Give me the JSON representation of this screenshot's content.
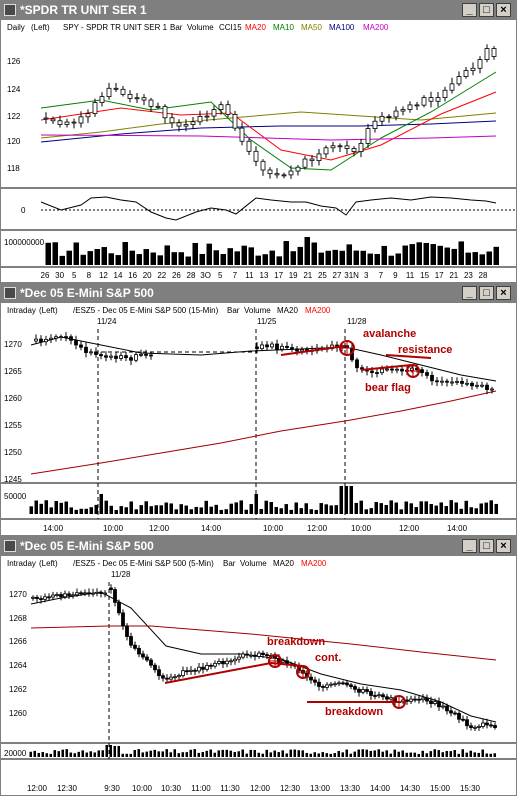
{
  "windows": [
    {
      "title": "*SPDR TR UNIT SER 1",
      "info": {
        "period": "Daily",
        "axis": "(Left)",
        "symbol": "SPY - SPDR TR UNIT SER 1",
        "bar": "Bar",
        "volume": "Volume",
        "cci": "CCI15",
        "ma1": "MA20",
        "ma2": "MA10",
        "ma3": "MA50",
        "ma4": "MA100",
        "ma5": "MA200"
      },
      "price_ticks": [
        "126",
        "124",
        "122",
        "120",
        "118"
      ],
      "cci_ticks": [
        "0"
      ],
      "volume_ticks": [
        "100000000"
      ],
      "date_labels": [
        "26",
        "30",
        "5",
        "8",
        "12",
        "14",
        "16",
        "20",
        "22",
        "26",
        "28",
        "3O",
        "5",
        "7",
        "11",
        "13",
        "17",
        "19",
        "21",
        "25",
        "27",
        "31N",
        "3",
        "7",
        "9",
        "11",
        "15",
        "17",
        "21",
        "23",
        "28"
      ]
    },
    {
      "title": "*Dec 05  E-Mini S&P 500",
      "info": {
        "period": "Intraday",
        "axis": "(Left)",
        "symbol": "/ESZ5 - Dec 05 E-Mini S&P 500 (15-Min)",
        "bar": "Bar",
        "volume": "Volume",
        "ma1": "MA20",
        "ma2": "MA200"
      },
      "price_ticks": [
        "1270",
        "1265",
        "1260",
        "1255",
        "1250",
        "1245"
      ],
      "volume_ticks": [
        "50000"
      ],
      "session_labels": [
        "11/24",
        "11/25",
        "11/28"
      ],
      "annotations": [
        "avalanche",
        "resistance",
        "bear flag"
      ],
      "time_labels": [
        "14:00",
        "10:00",
        "12:00",
        "14:00",
        "10:00",
        "12:00",
        "10:00",
        "12:00",
        "14:00"
      ]
    },
    {
      "title": "*Dec 05  E-Mini S&P 500",
      "info": {
        "period": "Intraday",
        "axis": "(Left)",
        "symbol": "/ESZ5 - Dec 05 E-Mini S&P 500 (5-Min)",
        "bar": "Bar",
        "volume": "Volume",
        "ma1": "MA20",
        "ma2": "MA200"
      },
      "price_ticks": [
        "1270",
        "1268",
        "1266",
        "1264",
        "1262",
        "1260"
      ],
      "volume_ticks": [
        "20000"
      ],
      "session_labels": [
        "11/28"
      ],
      "annotations": [
        "breakdown",
        "cont.",
        "breakdown"
      ],
      "time_labels": [
        "12:00",
        "12:30",
        "9:30",
        "10:00",
        "10:30",
        "11:00",
        "11:30",
        "12:00",
        "12:30",
        "13:00",
        "13:30",
        "14:00",
        "14:30",
        "15:00",
        "15:30"
      ]
    }
  ],
  "buttons": {
    "min": "_",
    "max": "□",
    "close": "×"
  },
  "colors": {
    "ma20": "#ff0000",
    "ma10": "#008000",
    "ma50": "#808000",
    "ma100": "#000080",
    "ma200": "#c000c0",
    "annotation": "#b00000"
  }
}
